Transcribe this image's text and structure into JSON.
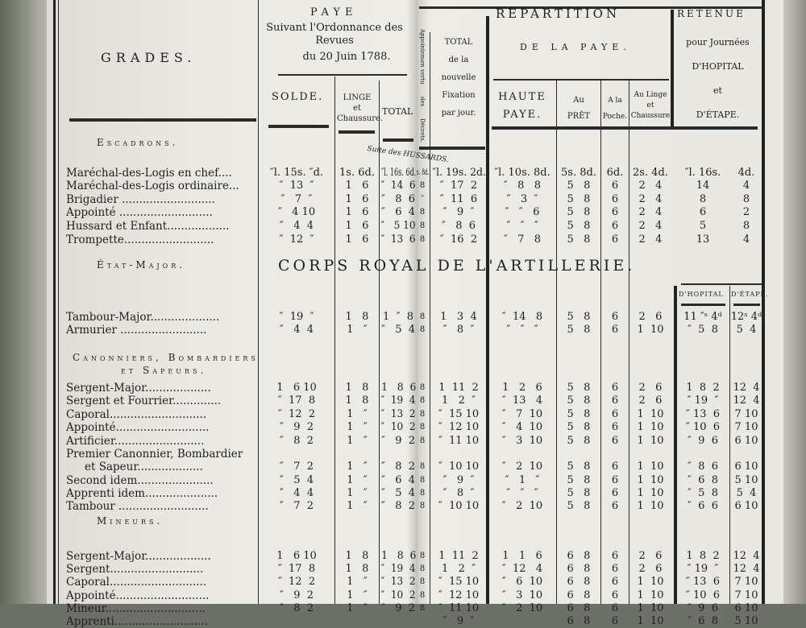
{
  "header": {
    "grades": "GRADES.",
    "paye_title": "PAYE",
    "paye_sub1": "Suivant l'Ordonnance des Revues",
    "paye_sub2": "du 20 Juin 1788.",
    "solde": "SOLDE.",
    "linge_top": "LINGE",
    "linge_mid": "et",
    "linge_bot": "Chaussure.",
    "total": "TOTAL",
    "appointements": [
      "Appointem.",
      "en vertu",
      "des",
      "Décrets."
    ],
    "total_nouvelle": [
      "TOTAL",
      "de la",
      "nouvelle",
      "Fixation",
      "par jour."
    ],
    "repartition_title": "RÉPARTITION",
    "repartition_sub": "DE LA PAYE.",
    "haute_paye": [
      "HAUTE",
      "PAYE."
    ],
    "au_pret": [
      "Au",
      "PRÊT"
    ],
    "a_la_poche": [
      "A la",
      "Poche."
    ],
    "au_linge": [
      "Au Linge",
      "et",
      "Chaussure"
    ],
    "retenue_title": "RETENUE",
    "retenue_sub": [
      "pour Journées",
      "D'HOPITAL",
      "et",
      "D'ÉTAPE."
    ]
  },
  "captions": {
    "suite_hussards": "Suite des HUSSARDS.",
    "corps_royal": "CORPS ROYAL DE L'ARTILLERIE.",
    "hopital": "D'HOPITAL",
    "etape": "D'ÉTAPE."
  },
  "sections": [
    {
      "title": "Escadrons.",
      "rows": [
        {
          "label": "Maréchal-des-Logis en chef....",
          "cells": [
            "″l. 15s. ″d.",
            "1s. 6d.",
            "″l. 16s. 6d.",
            "s. 8d.",
            "″l. 19s. 2d.",
            "″l. 10s. 8d.",
            "5s. 8d.",
            "6d.",
            "2s. 4d.",
            "″l. 16s.",
            "4d."
          ]
        },
        {
          "label": "Maréchal-des-Logis ordinaire...",
          "cells": [
            "″  13  ″",
            "1   6",
            "″  14  6",
            "8",
            "″  17  2",
            "″   8   8",
            "5   8",
            "6",
            "2   4",
            "14",
            "4"
          ]
        },
        {
          "label": "Brigadier ...........................",
          "cells": [
            "″   7  ″",
            "1   6",
            "″   8  6",
            "″",
            "″  11  6",
            "″   3  ″",
            "5   8",
            "6",
            "2   4",
            "8",
            "8"
          ]
        },
        {
          "label": "Appointé ...........................",
          "cells": [
            "″   4 10",
            "1   6",
            "″   6  4",
            "8",
            "″   9  ″",
            "″   ″   6",
            "5   8",
            "6",
            "2   4",
            "6",
            "2"
          ]
        },
        {
          "label": "Hussard et Enfant..................",
          "cells": [
            "″   4  4",
            "1   6",
            "″   5 10",
            "8",
            "″   8  6",
            "″   ″   ″",
            "5   8",
            "6",
            "2   4",
            "5",
            "8"
          ]
        },
        {
          "label": "Trompette..........................",
          "cells": [
            "″  12  ″",
            "1   6",
            "″  13  6",
            "8",
            "″  16  2",
            "″   7   8",
            "5   8",
            "6",
            "2   4",
            "13",
            "4"
          ]
        }
      ]
    },
    {
      "title": "État-Major.",
      "rows": [
        {
          "label": "Tambour-Major....................",
          "cells": [
            "″  19  ″",
            "1   8",
            "1  ″  8",
            "8",
            "1   3  4",
            "″  14   8",
            "5   8",
            "6",
            "2   6",
            "11 ″ˢ 4ᵈ",
            "12ˢ 4ᵈ"
          ]
        },
        {
          "label": "Armurier .........................",
          "cells": [
            "″   4  4",
            "1   ″",
            "″   5  4",
            "8",
            "″   8  ″",
            "″   ″   ″",
            "5   8",
            "6",
            "1  10",
            "″  5  8",
            "5  4"
          ]
        }
      ]
    },
    {
      "title": "Canonniers, Bombardiers",
      "title2": "et Sapeurs.",
      "rows": [
        {
          "label": "Sergent-Major...................",
          "cells": [
            "1   6 10",
            "1   8",
            "1   8  6",
            "8",
            "1  11  2",
            "1   2   6",
            "5   8",
            "6",
            "2   6",
            "1  8  2",
            "12  4"
          ]
        },
        {
          "label": "Sergent et Fourrier..............",
          "cells": [
            "″  17  8",
            "1   8",
            "″  19  4",
            "8",
            "1   2  ″",
            "″  13   4",
            "5   8",
            "6",
            "2   6",
            "″ 19  ″",
            "12  4"
          ]
        },
        {
          "label": "Caporal............................",
          "cells": [
            "″  12  2",
            "1   ″",
            "″  13  2",
            "8",
            "″  15 10",
            "″   7  10",
            "5   8",
            "6",
            "1  10",
            "″ 13  6",
            "7 10"
          ]
        },
        {
          "label": "Appointé...........................",
          "cells": [
            "″   9  2",
            "1   ″",
            "″  10  2",
            "8",
            "″  12 10",
            "″   4  10",
            "5   8",
            "6",
            "1  10",
            "″ 10  6",
            "7 10"
          ]
        },
        {
          "label": "Artificier..........................",
          "cells": [
            "″   8  2",
            "1   ″",
            "″   9  2",
            "8",
            "″  11 10",
            "″   3  10",
            "5   8",
            "6",
            "1  10",
            "″  9  6",
            "6 10"
          ]
        },
        {
          "label": "Premier Canonnier, Bombardier",
          "label2": "et Sapeur...................",
          "cells": [
            "″   7  2",
            "1   ″",
            "″   8  2",
            "8",
            "″  10 10",
            "″   2  10",
            "5   8",
            "6",
            "1  10",
            "″  8  6",
            "6 10"
          ]
        },
        {
          "label": "Second idem......................",
          "cells": [
            "″   5  4",
            "1   ″",
            "″   6  4",
            "8",
            "″   9  ″",
            "″   1   ″",
            "5   8",
            "6",
            "1  10",
            "″  6  8",
            "5 10"
          ]
        },
        {
          "label": "Apprenti idem.....................",
          "cells": [
            "″   4  4",
            "1   ″",
            "″   5  4",
            "8",
            "″   8  ″",
            "″   ″   ″",
            "5   8",
            "6",
            "1  10",
            "″  5  8",
            "5  4"
          ]
        },
        {
          "label": "Tambour ..........................",
          "cells": [
            "″   7  2",
            "1   ″",
            "″   8  2",
            "8",
            "″  10 10",
            "″   2  10",
            "5   8",
            "6",
            "1  10",
            "″  6  6",
            "6 10"
          ]
        }
      ]
    },
    {
      "title": "Mineurs.",
      "rows": [
        {
          "label": "Sergent-Major...................",
          "cells": [
            "1   6 10",
            "1   8",
            "1   8  6",
            "8",
            "1  11  2",
            "1   1   6",
            "6   8",
            "6",
            "2   6",
            "1  8  2",
            "12  4"
          ]
        },
        {
          "label": "Sergent...........................",
          "cells": [
            "″  17  8",
            "1   8",
            "″  19  4",
            "8",
            "1   2  ″",
            "″  12   4",
            "6   8",
            "6",
            "2   6",
            "″ 19  ″",
            "12  4"
          ]
        },
        {
          "label": "Caporal............................",
          "cells": [
            "″  12  2",
            "1   ″",
            "″  13  2",
            "8",
            "″  15 10",
            "″   6  10",
            "6   8",
            "6",
            "1  10",
            "″ 13  6",
            "7 10"
          ]
        },
        {
          "label": "Appointé...........................",
          "cells": [
            "″   9  2",
            "1   ″",
            "″  10  2",
            "8",
            "″  12 10",
            "″   3  10",
            "6   8",
            "6",
            "1  10",
            "″ 10  6",
            "7 10"
          ]
        },
        {
          "label": "Mineur.............................",
          "cells": [
            "″   8  2",
            "1   ″",
            "″   9  2",
            "8",
            "″  11 10",
            "″   2  10",
            "6   8",
            "6",
            "1  10",
            "″  9  6",
            "6 10"
          ]
        },
        {
          "label": "Apprenti...........................",
          "cells": [
            "",
            "",
            "",
            "",
            "″   9  ″",
            "",
            "6   8",
            "6",
            "1  10",
            "″  6  8",
            "5 10"
          ]
        }
      ]
    }
  ]
}
